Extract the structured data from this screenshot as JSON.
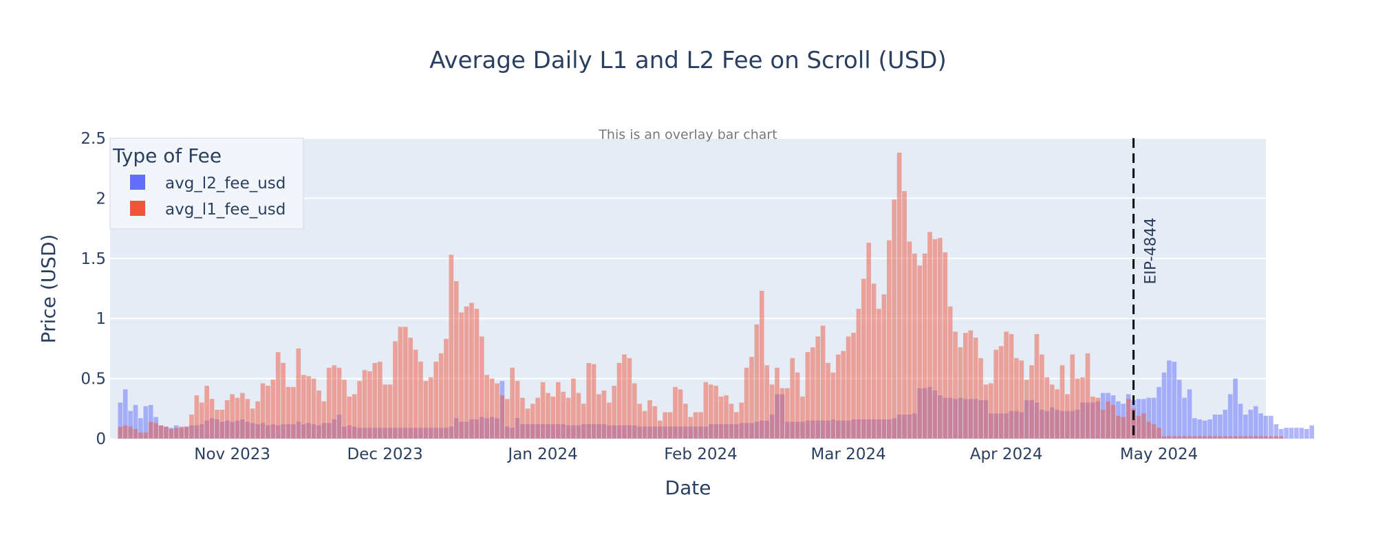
{
  "chart_data": {
    "type": "bar",
    "mode": "overlay",
    "title": "Average Daily L1 and L2 Fee on Scroll (USD)",
    "subtitle": "This is an overlay bar chart",
    "xlabel": "Date",
    "ylabel": "Price (USD)",
    "ylim": [
      0,
      2.5
    ],
    "yticks": [
      0,
      0.5,
      1,
      1.5,
      2,
      2.5
    ],
    "ytick_labels": [
      "0",
      "0.5",
      "1",
      "1.5",
      "2",
      "2.5"
    ],
    "xlim": [
      "2023-10-08",
      "2024-05-22"
    ],
    "xticks": [
      "2023-11-01",
      "2023-12-01",
      "2024-01-01",
      "2024-02-01",
      "2024-03-01",
      "2024-04-01",
      "2024-05-01"
    ],
    "xtick_labels": [
      "Nov 2023",
      "Dec 2023",
      "Jan 2024",
      "Feb 2024",
      "Mar 2024",
      "Apr 2024",
      "May 2024"
    ],
    "grid": true,
    "legend": {
      "title": "Type of Fee",
      "placement": "top-left"
    },
    "start_date": "2023-10-10",
    "series": [
      {
        "name": "avg_l2_fee_usd",
        "color": "#636efa",
        "values": [
          0.3,
          0.41,
          0.23,
          0.28,
          0.17,
          0.27,
          0.28,
          0.18,
          0.11,
          0.1,
          0.09,
          0.11,
          0.09,
          0.1,
          0.11,
          0.11,
          0.12,
          0.15,
          0.17,
          0.16,
          0.14,
          0.15,
          0.14,
          0.15,
          0.16,
          0.14,
          0.13,
          0.12,
          0.13,
          0.11,
          0.12,
          0.11,
          0.12,
          0.12,
          0.12,
          0.14,
          0.12,
          0.13,
          0.12,
          0.11,
          0.13,
          0.13,
          0.16,
          0.2,
          0.1,
          0.11,
          0.1,
          0.09,
          0.09,
          0.09,
          0.09,
          0.09,
          0.09,
          0.09,
          0.09,
          0.09,
          0.09,
          0.09,
          0.09,
          0.09,
          0.09,
          0.09,
          0.09,
          0.09,
          0.09,
          0.1,
          0.17,
          0.14,
          0.14,
          0.16,
          0.16,
          0.18,
          0.17,
          0.18,
          0.17,
          0.48,
          0.1,
          0.09,
          0.17,
          0.12,
          0.12,
          0.12,
          0.12,
          0.12,
          0.12,
          0.12,
          0.12,
          0.12,
          0.11,
          0.11,
          0.11,
          0.12,
          0.12,
          0.12,
          0.12,
          0.12,
          0.11,
          0.11,
          0.11,
          0.11,
          0.11,
          0.11,
          0.1,
          0.1,
          0.1,
          0.1,
          0.1,
          0.1,
          0.1,
          0.1,
          0.1,
          0.1,
          0.1,
          0.1,
          0.1,
          0.1,
          0.12,
          0.12,
          0.12,
          0.12,
          0.12,
          0.12,
          0.13,
          0.13,
          0.13,
          0.14,
          0.15,
          0.15,
          0.2,
          0.37,
          0.37,
          0.14,
          0.14,
          0.14,
          0.14,
          0.15,
          0.15,
          0.15,
          0.15,
          0.15,
          0.16,
          0.15,
          0.15,
          0.15,
          0.16,
          0.16,
          0.16,
          0.16,
          0.16,
          0.16,
          0.16,
          0.16,
          0.17,
          0.2,
          0.2,
          0.2,
          0.21,
          0.42,
          0.42,
          0.43,
          0.4,
          0.36,
          0.34,
          0.34,
          0.33,
          0.34,
          0.33,
          0.33,
          0.33,
          0.32,
          0.32,
          0.21,
          0.21,
          0.21,
          0.21,
          0.23,
          0.23,
          0.22,
          0.32,
          0.32,
          0.3,
          0.24,
          0.23,
          0.26,
          0.24,
          0.23,
          0.23,
          0.23,
          0.24,
          0.3,
          0.3,
          0.3,
          0.31,
          0.38,
          0.38,
          0.36,
          0.31,
          0.29,
          0.37,
          0.32,
          0.33,
          0.33,
          0.34,
          0.34,
          0.43,
          0.55,
          0.65,
          0.64,
          0.49,
          0.34,
          0.41,
          0.17,
          0.16,
          0.15,
          0.16,
          0.2,
          0.2,
          0.24,
          0.37,
          0.5,
          0.29,
          0.2,
          0.24,
          0.27,
          0.21,
          0.19,
          0.19,
          0.12,
          0.08,
          0.09,
          0.09,
          0.09,
          0.09,
          0.08,
          0.11
        ]
      },
      {
        "name": "avg_l1_fee_usd",
        "color": "#ef553b",
        "values": [
          0.1,
          0.11,
          0.1,
          0.08,
          0.05,
          0.05,
          0.14,
          0.13,
          0.11,
          0.1,
          0.08,
          0.09,
          0.1,
          0.1,
          0.2,
          0.36,
          0.3,
          0.44,
          0.33,
          0.24,
          0.24,
          0.32,
          0.37,
          0.34,
          0.38,
          0.33,
          0.25,
          0.31,
          0.46,
          0.44,
          0.49,
          0.72,
          0.63,
          0.43,
          0.43,
          0.75,
          0.53,
          0.52,
          0.5,
          0.4,
          0.31,
          0.59,
          0.61,
          0.59,
          0.49,
          0.35,
          0.37,
          0.48,
          0.57,
          0.56,
          0.63,
          0.64,
          0.45,
          0.45,
          0.81,
          0.93,
          0.93,
          0.84,
          0.74,
          0.64,
          0.48,
          0.51,
          0.64,
          0.71,
          0.83,
          1.53,
          1.31,
          1.05,
          1.1,
          1.13,
          1.08,
          0.85,
          0.53,
          0.5,
          0.46,
          0.36,
          0.33,
          0.59,
          0.48,
          0.34,
          0.25,
          0.29,
          0.34,
          0.47,
          0.38,
          0.35,
          0.47,
          0.39,
          0.34,
          0.5,
          0.38,
          0.29,
          0.63,
          0.62,
          0.37,
          0.4,
          0.3,
          0.44,
          0.63,
          0.7,
          0.67,
          0.46,
          0.29,
          0.23,
          0.32,
          0.27,
          0.15,
          0.22,
          0.22,
          0.43,
          0.41,
          0.29,
          0.18,
          0.22,
          0.22,
          0.47,
          0.45,
          0.44,
          0.35,
          0.36,
          0.29,
          0.22,
          0.3,
          0.59,
          0.68,
          0.95,
          1.23,
          0.61,
          0.45,
          0.59,
          0.42,
          0.42,
          0.67,
          0.55,
          0.35,
          0.72,
          0.76,
          0.85,
          0.94,
          0.63,
          0.55,
          0.7,
          0.73,
          0.85,
          0.88,
          1.08,
          1.33,
          1.63,
          1.29,
          1.08,
          1.2,
          1.65,
          1.99,
          2.38,
          2.06,
          1.64,
          1.54,
          1.44,
          1.54,
          1.72,
          1.66,
          1.67,
          1.55,
          1.1,
          0.89,
          0.76,
          0.88,
          0.9,
          0.84,
          0.67,
          0.45,
          0.46,
          0.74,
          0.77,
          0.89,
          0.87,
          0.67,
          0.65,
          0.49,
          0.61,
          0.87,
          0.7,
          0.51,
          0.45,
          0.41,
          0.61,
          0.37,
          0.7,
          0.5,
          0.51,
          0.71,
          0.35,
          0.34,
          0.24,
          0.31,
          0.28,
          0.19,
          0.18,
          0.33,
          0.25,
          0.19,
          0.21,
          0.14,
          0.12,
          0.09,
          0.02,
          0.02,
          0.02,
          0.02,
          0.02,
          0.02,
          0.02,
          0.02,
          0.02,
          0.02,
          0.02,
          0.02,
          0.02,
          0.02,
          0.02,
          0.02,
          0.02,
          0.02,
          0.02,
          0.02,
          0.02,
          0.02,
          0.02,
          0.02
        ]
      }
    ],
    "annotations": [
      {
        "type": "vline",
        "x": "2024-04-26",
        "label": "EIP-4844"
      }
    ]
  }
}
